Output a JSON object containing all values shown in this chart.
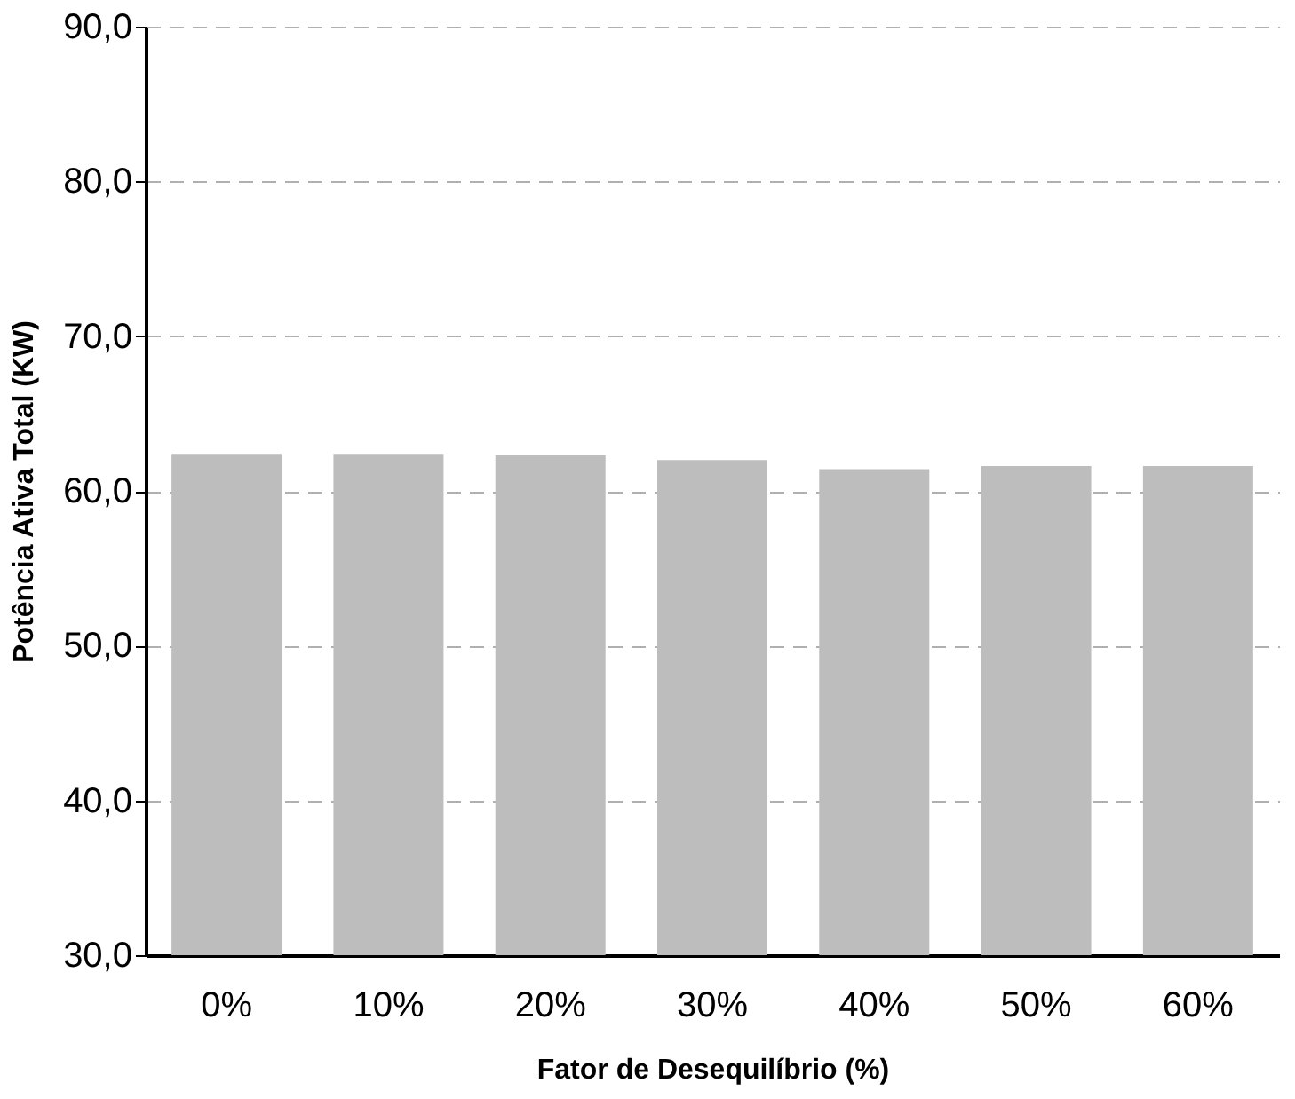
{
  "chart_data": {
    "type": "bar",
    "xlabel": "Fator de Desequilíbrio (%)",
    "ylabel": "Potência Ativa Total (KW)",
    "categories": [
      "0%",
      "10%",
      "20%",
      "30%",
      "40%",
      "50%",
      "60%"
    ],
    "values": [
      62.4,
      62.4,
      62.3,
      62.0,
      61.4,
      61.6,
      61.6
    ],
    "color": "#bdbdbd",
    "ylim": [
      30,
      90
    ],
    "yticks": [
      {
        "value": 30,
        "label": "30,0"
      },
      {
        "value": 40,
        "label": "40,0"
      },
      {
        "value": 50,
        "label": "50,0"
      },
      {
        "value": 60,
        "label": "60,0"
      },
      {
        "value": 70,
        "label": "70,0"
      },
      {
        "value": 80,
        "label": "80,0"
      },
      {
        "value": 90,
        "label": "90,0"
      }
    ],
    "grid": "y"
  }
}
